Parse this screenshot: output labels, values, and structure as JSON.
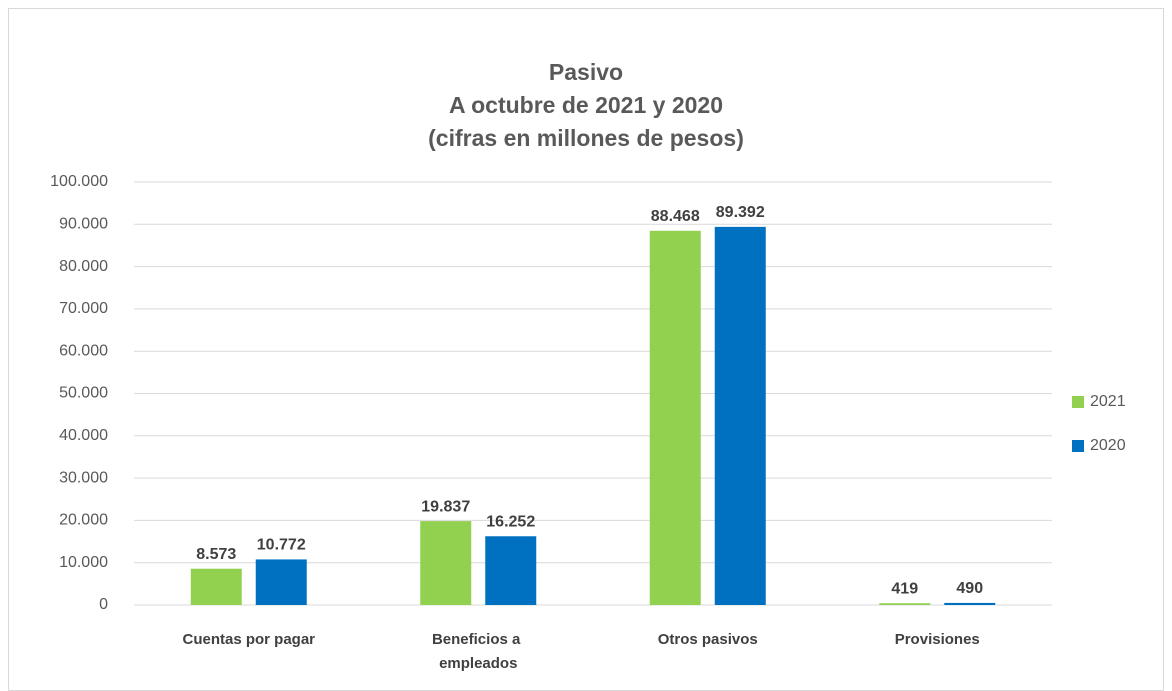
{
  "chart_data": {
    "type": "bar",
    "title": [
      "Pasivo",
      "A octubre de 2021 y 2020",
      "(cifras en millones de pesos)"
    ],
    "categories": [
      "Cuentas por pagar",
      "Beneficios a empleados",
      "Otros pasivos",
      "Provisiones"
    ],
    "series": [
      {
        "name": "2021",
        "color": "#92d050",
        "values": [
          8573,
          19837,
          88468,
          419
        ],
        "value_labels": [
          "8.573",
          "19.837",
          "88.468",
          "419"
        ]
      },
      {
        "name": "2020",
        "color": "#0070c0",
        "values": [
          10772,
          16252,
          89392,
          490
        ],
        "value_labels": [
          "10.772",
          "16.252",
          "89.392",
          "490"
        ]
      }
    ],
    "ylim": [
      0,
      100000
    ],
    "yticks": [
      0,
      {
        "value": 10000,
        "label": "10.000"
      },
      {
        "value": 20000,
        "label": "20.000"
      },
      {
        "value": 30000,
        "label": "30.000"
      },
      {
        "value": 40000,
        "label": "40.000"
      },
      {
        "value": 50000,
        "label": "50.000"
      },
      {
        "value": 60000,
        "label": "60.000"
      },
      {
        "value": 70000,
        "label": "70.000"
      },
      {
        "value": 80000,
        "label": "80.000"
      },
      {
        "value": 90000,
        "label": "90.000"
      },
      {
        "value": 100000,
        "label": "100.000"
      }
    ],
    "grid": true,
    "legend": "right"
  }
}
